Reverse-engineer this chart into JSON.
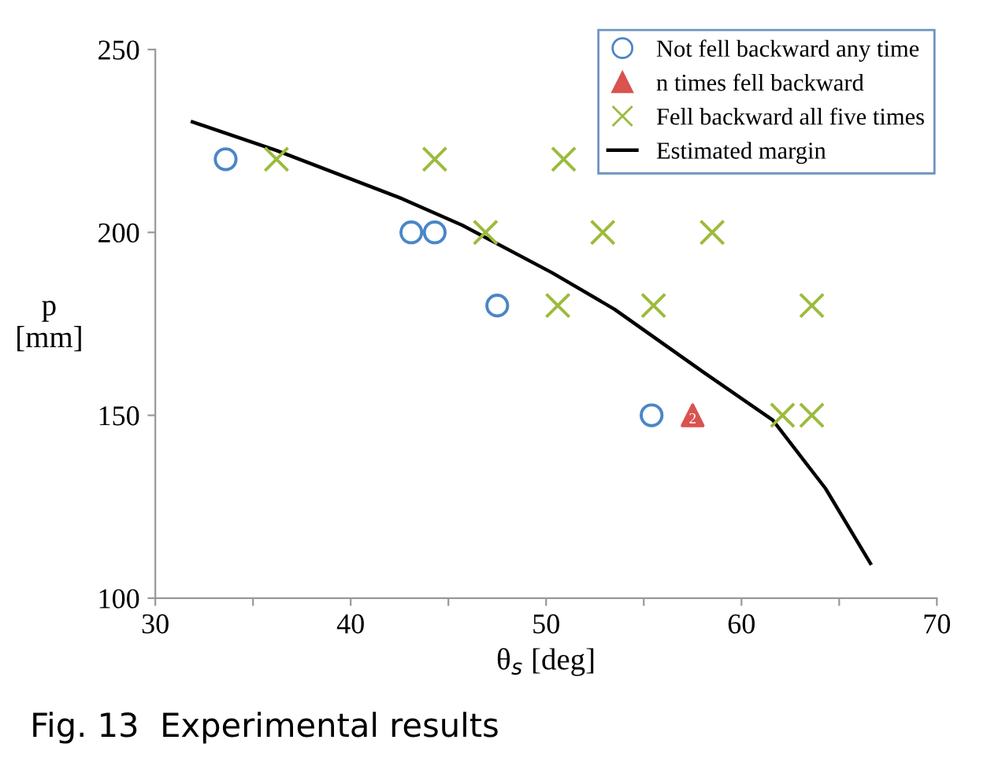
{
  "chart_data": {
    "type": "scatter",
    "xlabel": "θ$_{s}$ [deg]",
    "ylabel": "p\n[mm]",
    "annotations": [
      {
        "text": "2",
        "x": 57.5,
        "y": 150
      },
      "Fig. 13  Experimental results"
    ],
    "xlim": [
      30,
      70
    ],
    "ylim": [
      100,
      250
    ],
    "xticks": [
      30,
      {
        "value": 35,
        "label": null
      },
      40,
      {
        "value": 45,
        "label": null
      },
      50,
      {
        "value": 55,
        "label": null
      },
      60,
      {
        "value": 65,
        "label": null
      },
      70
    ],
    "yticks": [
      100,
      150,
      200,
      250
    ],
    "grid": false,
    "legend": "top right",
    "series": [
      {
        "name": "Not fell backward any time",
        "marker": "circle",
        "color": "#4a86c8",
        "x": [
          33.6,
          43.1,
          44.3,
          47.5,
          55.4
        ],
        "values": [
          220,
          200,
          200,
          180,
          150
        ]
      },
      {
        "name": "n times fell backward",
        "marker": "triangle",
        "color": "#d9534f",
        "x": [
          57.5
        ],
        "values": [
          150
        ]
      },
      {
        "name": "Fell backward all five times",
        "marker": "cross",
        "color": "#9cbb3c",
        "x": [
          36.2,
          44.3,
          50.9,
          46.9,
          52.9,
          58.5,
          50.6,
          55.5,
          63.6,
          62.1,
          63.6
        ],
        "values": [
          220,
          220,
          220,
          200,
          200,
          200,
          180,
          180,
          180,
          150,
          150
        ]
      },
      {
        "name": "Estimated margin",
        "type": "line",
        "marker": "none",
        "line_style": "solid",
        "color": "#000000",
        "x": [
          31.9,
          36.2,
          42.5,
          45.7,
          50.3,
          53.5,
          58.1,
          61.6,
          64.3,
          66.6
        ],
        "values": [
          230.2,
          222.4,
          209.5,
          202,
          189,
          179,
          161.6,
          148.7,
          130,
          109.5
        ]
      }
    ]
  }
}
